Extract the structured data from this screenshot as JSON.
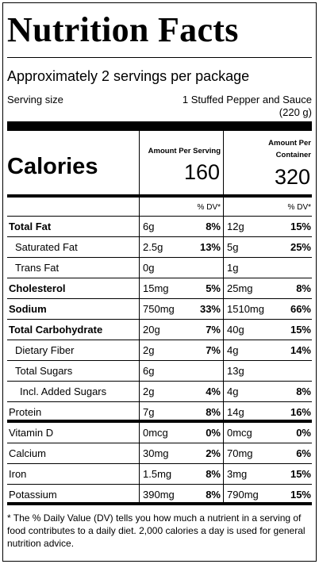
{
  "label": {
    "title": "Nutrition Facts",
    "servings": "Approximately 2 servings per package",
    "serving_size_label": "Serving size",
    "serving_size_line1": "1 Stuffed Pepper and Sauce",
    "serving_size_line2": "(220 g)"
  },
  "calories": {
    "label": "Calories",
    "per_serving_header": "Amount Per Serving",
    "per_container_header_1": "Amount Per",
    "per_container_header_2": "Container",
    "per_serving_value": "160",
    "per_container_value": "320"
  },
  "dv_header": {
    "serving": "% DV*",
    "container": "% DV*"
  },
  "nutrients": [
    {
      "name": "Total Fat",
      "style": "bold",
      "amt1": "6g",
      "dv1": "8%",
      "amt2": "12g",
      "dv2": "15%"
    },
    {
      "name": "Saturated Fat",
      "style": "ind1",
      "amt1": "2.5g",
      "dv1": "13%",
      "amt2": "5g",
      "dv2": "25%"
    },
    {
      "name": "Trans Fat",
      "style": "ind1",
      "amt1": "0g",
      "dv1": "",
      "amt2": "1g",
      "dv2": ""
    },
    {
      "name": "Cholesterol",
      "style": "bold",
      "amt1": "15mg",
      "dv1": "5%",
      "amt2": "25mg",
      "dv2": "8%"
    },
    {
      "name": "Sodium",
      "style": "bold",
      "amt1": "750mg",
      "dv1": "33%",
      "amt2": "1510mg",
      "dv2": "66%"
    },
    {
      "name": "Total Carbohydrate",
      "style": "bold",
      "amt1": "20g",
      "dv1": "7%",
      "amt2": "40g",
      "dv2": "15%"
    },
    {
      "name": "Dietary Fiber",
      "style": "ind1",
      "amt1": "2g",
      "dv1": "7%",
      "amt2": "4g",
      "dv2": "14%"
    },
    {
      "name": "Total Sugars",
      "style": "ind1",
      "amt1": "6g",
      "dv1": "",
      "amt2": "13g",
      "dv2": ""
    },
    {
      "name": "Incl. Added Sugars",
      "style": "ind2",
      "amt1": "2g",
      "dv1": "4%",
      "amt2": "4g",
      "dv2": "8%"
    },
    {
      "name": "Protein",
      "style": "plain",
      "amt1": "7g",
      "dv1": "8%",
      "amt2": "14g",
      "dv2": "16%"
    }
  ],
  "vitamins": [
    {
      "name": "Vitamin D",
      "amt1": "0mcg",
      "dv1": "0%",
      "amt2": "0mcg",
      "dv2": "0%"
    },
    {
      "name": "Calcium",
      "amt1": "30mg",
      "dv1": "2%",
      "amt2": "70mg",
      "dv2": "6%"
    },
    {
      "name": "Iron",
      "amt1": "1.5mg",
      "dv1": "8%",
      "amt2": "3mg",
      "dv2": "15%"
    },
    {
      "name": "Potassium",
      "amt1": "390mg",
      "dv1": "8%",
      "amt2": "790mg",
      "dv2": "15%"
    }
  ],
  "footnote": "* The % Daily Value (DV) tells you how much a nutrient in a serving of food contributes to a daily diet. 2,000 calories a day is used for general nutrition advice."
}
